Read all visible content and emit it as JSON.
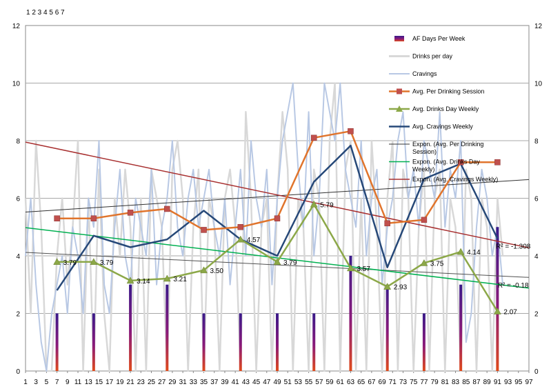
{
  "header_text": "1 2 3 4 5 6 7",
  "chart_data": {
    "type": "line",
    "title": "",
    "xlabel": "",
    "ylabel": "",
    "grid": "horizontal",
    "legend_position": "right",
    "xlim": [
      1,
      97
    ],
    "ylim": [
      0,
      12
    ],
    "y_ticks": [
      "0",
      "2",
      "4",
      "6",
      "8",
      "10",
      "12"
    ],
    "x_ticks": [
      "1",
      "3",
      "5",
      "7",
      "9",
      "11",
      "13",
      "15",
      "17",
      "19",
      "21",
      "23",
      "25",
      "27",
      "29",
      "31",
      "33",
      "35",
      "37",
      "39",
      "41",
      "43",
      "45",
      "47",
      "49",
      "51",
      "53",
      "55",
      "57",
      "59",
      "61",
      "63",
      "65",
      "67",
      "69",
      "71",
      "73",
      "75",
      "77",
      "79",
      "81",
      "83",
      "85",
      "87",
      "89",
      "91",
      "93",
      "95",
      "97"
    ],
    "legend": [
      "AF Days Per Week",
      "Drinks per day",
      "Cravings",
      "Avg. Per Drinking Session",
      "Avg. Drinks Day Weekly",
      "Avg. Cravings Weekly",
      "Expon. (Avg. Per Drinking Session)",
      "Expon. (Avg. Drinks Day Weekly)",
      "Expon. (Avg. Cravings Weekly)"
    ],
    "colors": {
      "af": "#3a1a8a",
      "af_bottom": "#e04a1a",
      "drinks": "#d8d8d8",
      "cravings": "#b8c8e4",
      "session": "#e0742c",
      "session_marker": "#c0504d",
      "drinks_weekly": "#8ca848",
      "cravings_weekly": "#264878",
      "trend_session": "#303030",
      "trend_drinks": "#00b050",
      "trend_cravings": "#a83030",
      "trend_extra": "#505050",
      "grid": "#a8a8a8"
    },
    "series": [
      {
        "name": "AF Days Per Week",
        "kind": "bar",
        "x": [
          7,
          14,
          21,
          28,
          35,
          42,
          49,
          56,
          63,
          70,
          77,
          84,
          91
        ],
        "values": [
          2,
          2,
          3,
          3,
          2,
          2,
          2,
          2,
          4,
          3,
          2,
          3,
          5
        ]
      },
      {
        "name": "Drinks per day",
        "kind": "line",
        "x": [
          1,
          2,
          3,
          4,
          5,
          6,
          7,
          8,
          9,
          10,
          11,
          12,
          13,
          14,
          15,
          16,
          17,
          18,
          19,
          20,
          21,
          22,
          23,
          24,
          25,
          26,
          27,
          28,
          29,
          30,
          31,
          32,
          33,
          34,
          35,
          36,
          37,
          38,
          39,
          40,
          41,
          42,
          43,
          44,
          45,
          46,
          47,
          48,
          49,
          50,
          51,
          52,
          53,
          54,
          55,
          56,
          57,
          58,
          59,
          60,
          61,
          62,
          63,
          64,
          65,
          66,
          67,
          68,
          69,
          70,
          71,
          72,
          73,
          74,
          75,
          76,
          77,
          78,
          79,
          80,
          81,
          82,
          83,
          84,
          85,
          86,
          87,
          88,
          89,
          90,
          91,
          92
        ],
        "values": [
          6,
          2,
          8,
          5,
          0,
          0,
          4,
          6,
          3,
          5,
          8,
          0,
          6,
          0,
          7,
          2,
          0,
          6,
          4,
          7,
          5,
          0,
          6,
          0,
          7,
          6,
          5,
          0,
          7,
          8,
          6,
          0,
          5,
          7,
          0,
          6,
          5,
          0,
          6,
          7,
          5,
          0,
          9,
          6,
          0,
          5,
          6,
          0,
          6,
          9,
          7,
          0,
          6,
          5,
          0,
          7,
          6,
          0,
          8,
          10,
          0,
          7,
          8,
          0,
          6,
          0,
          8,
          5,
          0,
          6,
          8,
          0,
          7,
          6,
          0,
          5,
          7,
          0,
          6,
          7,
          0,
          6,
          5,
          0,
          7,
          6,
          0,
          6,
          5,
          0,
          6,
          4
        ]
      },
      {
        "name": "Cravings",
        "kind": "line",
        "x": [
          1,
          2,
          3,
          4,
          5,
          6,
          7,
          8,
          9,
          10,
          11,
          12,
          13,
          14,
          15,
          16,
          17,
          18,
          19,
          20,
          21,
          22,
          23,
          24,
          25,
          26,
          27,
          28,
          29,
          30,
          31,
          32,
          33,
          34,
          35,
          36,
          37,
          38,
          39,
          40,
          41,
          42,
          43,
          44,
          45,
          46,
          47,
          48,
          49,
          50,
          51,
          52,
          53,
          54,
          55,
          56,
          57,
          58,
          59,
          60,
          61,
          62,
          63,
          64,
          65,
          66,
          67,
          68,
          69,
          70,
          71,
          72,
          73,
          74,
          75,
          76,
          77,
          78,
          79,
          80,
          81,
          82,
          83,
          84,
          85,
          86,
          87,
          88,
          89,
          90,
          91,
          92
        ],
        "values": [
          4,
          6,
          3,
          1,
          0,
          2,
          3,
          4,
          2,
          5,
          4,
          2,
          6,
          5,
          8,
          3,
          2,
          5,
          7,
          4,
          3,
          6,
          5,
          4,
          7,
          3,
          5,
          6,
          8,
          5,
          4,
          6,
          7,
          5,
          6,
          7,
          5,
          4,
          6,
          3,
          5,
          7,
          4,
          8,
          6,
          5,
          7,
          3,
          6,
          8,
          9,
          10,
          7,
          5,
          9,
          4,
          6,
          10,
          9,
          8,
          10,
          7,
          6,
          5,
          8,
          4,
          6,
          7,
          3,
          5,
          6,
          8,
          9,
          6,
          7,
          5,
          8,
          7,
          6,
          9,
          5,
          7,
          6,
          8,
          1,
          2,
          5,
          7,
          6,
          4,
          5,
          3
        ]
      },
      {
        "name": "Avg. Per Drinking Session",
        "kind": "line",
        "x": [
          7,
          14,
          21,
          28,
          35,
          42,
          49,
          56,
          63,
          70,
          77,
          84,
          91
        ],
        "values": [
          5.3,
          5.3,
          5.5,
          5.63,
          4.9,
          5.0,
          5.3,
          8.1,
          8.33,
          5.13,
          5.25,
          7.25,
          7.25
        ]
      },
      {
        "name": "Avg. Drinks Day Weekly",
        "kind": "line",
        "x": [
          7,
          14,
          21,
          28,
          35,
          42,
          49,
          56,
          63,
          70,
          77,
          84,
          91
        ],
        "values": [
          3.79,
          3.79,
          3.14,
          3.21,
          3.5,
          4.57,
          3.79,
          5.79,
          3.57,
          2.93,
          3.75,
          4.14,
          2.07
        ],
        "data_labels": [
          "3.79",
          "3.79",
          "3.14",
          "3.21",
          "3.50",
          "4.57",
          "3.79",
          "5.79",
          "3.57",
          "2.93",
          "3.75",
          "4.14",
          "2.07"
        ]
      },
      {
        "name": "Avg. Cravings Weekly",
        "kind": "line",
        "x": [
          7,
          14,
          21,
          28,
          35,
          42,
          49,
          56,
          63,
          70,
          77,
          84,
          91
        ],
        "values": [
          2.8,
          4.7,
          4.3,
          4.57,
          5.57,
          4.57,
          4.0,
          6.57,
          7.83,
          3.6,
          6.67,
          7.2,
          4.6
        ]
      },
      {
        "name": "Expon. (Avg. Per Drinking Session)",
        "kind": "trend",
        "x": [
          1,
          97
        ],
        "values": [
          5.52,
          6.65
        ]
      },
      {
        "name": "Expon. (Avg. Drinks Day Weekly)",
        "kind": "trend",
        "x": [
          1,
          97
        ],
        "values": [
          4.98,
          2.88
        ]
      },
      {
        "name": "Expon. (Avg. Cravings Weekly)",
        "kind": "trend",
        "x": [
          1,
          97
        ],
        "values": [
          7.95,
          4.28
        ]
      },
      {
        "kind": "trend_extra",
        "x": [
          1,
          97
        ],
        "values": [
          4.12,
          3.25
        ]
      }
    ],
    "annotations": [
      {
        "text": "R² = -1.308",
        "x": 94,
        "y": 4.25
      },
      {
        "text": "R² = -0.18",
        "x": 94,
        "y": 2.9
      }
    ]
  }
}
